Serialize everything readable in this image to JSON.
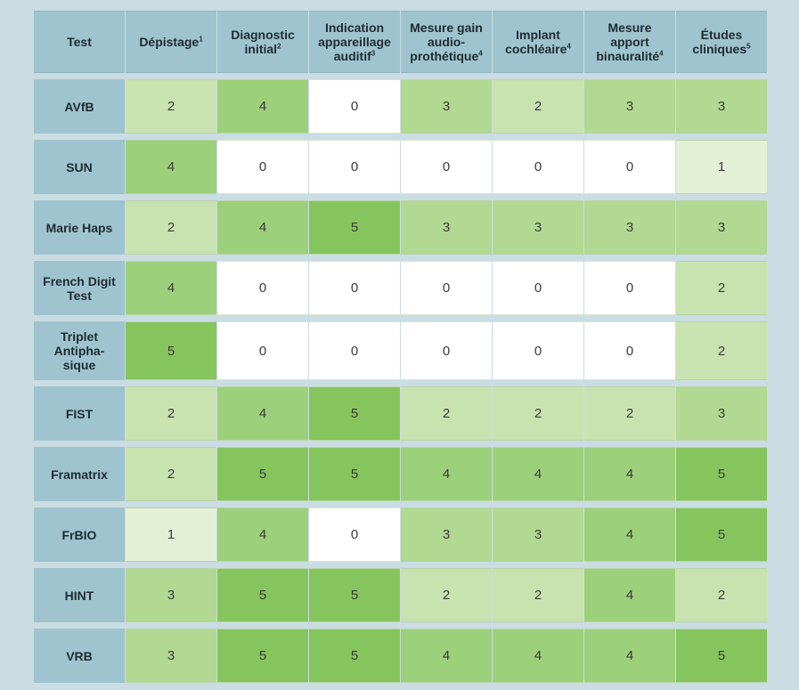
{
  "chart_data": {
    "type": "table",
    "corner_label": "Test",
    "columns": [
      {
        "label": "Dépistage",
        "note": "1"
      },
      {
        "label": "Diagnostic initial",
        "note": "2"
      },
      {
        "label": "Indication appareillage auditif",
        "note": "3"
      },
      {
        "label": "Mesure gain audio-prothétique",
        "note": "4"
      },
      {
        "label": "Implant cochléaire",
        "note": "4"
      },
      {
        "label": "Mesure apport binauralité",
        "note": "4"
      },
      {
        "label": "Études cliniques",
        "note": "5"
      }
    ],
    "rows": [
      {
        "test": "AVfB",
        "values": [
          2,
          4,
          0,
          3,
          2,
          3,
          3
        ]
      },
      {
        "test": "SUN",
        "values": [
          4,
          0,
          0,
          0,
          0,
          0,
          1
        ]
      },
      {
        "test": "Marie Haps",
        "values": [
          2,
          4,
          5,
          3,
          3,
          3,
          3
        ]
      },
      {
        "test": "French Digit Test",
        "values": [
          4,
          0,
          0,
          0,
          0,
          0,
          2
        ]
      },
      {
        "test": "Triplet Antipha-sique",
        "values": [
          5,
          0,
          0,
          0,
          0,
          0,
          2
        ]
      },
      {
        "test": "FIST",
        "values": [
          2,
          4,
          5,
          2,
          2,
          2,
          3
        ]
      },
      {
        "test": "Framatrix",
        "values": [
          2,
          5,
          5,
          4,
          4,
          4,
          5
        ]
      },
      {
        "test": "FrBIO",
        "values": [
          1,
          4,
          0,
          3,
          3,
          4,
          5
        ]
      },
      {
        "test": "HINT",
        "values": [
          3,
          5,
          5,
          2,
          2,
          4,
          2
        ]
      },
      {
        "test": "VRB",
        "values": [
          3,
          5,
          5,
          4,
          4,
          4,
          5
        ]
      }
    ],
    "color_scale": {
      "0": "#ffffff",
      "1": "#e3f0d6",
      "2": "#c9e3b0",
      "3": "#b1d991",
      "4": "#9dd07a",
      "5": "#86c55d"
    },
    "header_color": "#9fc4cf",
    "background_color": "#c9dde3"
  }
}
